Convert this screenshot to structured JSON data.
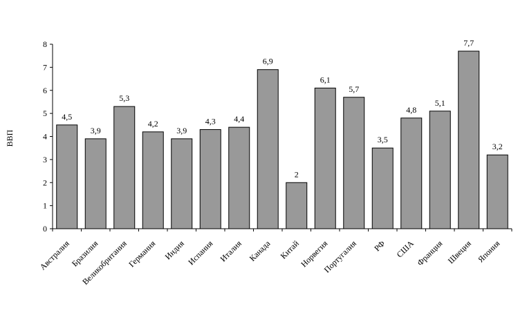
{
  "chart_data": {
    "type": "bar",
    "title": "",
    "xlabel": "",
    "ylabel": "ВВП",
    "ylim": [
      0,
      8
    ],
    "yticks": [
      0,
      1,
      2,
      3,
      4,
      5,
      6,
      7,
      8
    ],
    "grid": false,
    "legend": "none",
    "bar_color": "#999999",
    "categories": [
      "Австралия",
      "Бразилия",
      "Великобритания",
      "Германия",
      "Индия",
      "Испания",
      "Италия",
      "Канада",
      "Китай",
      "Норвегия",
      "Португалия",
      "РФ",
      "США",
      "Франция",
      "Швеция",
      "Япония"
    ],
    "values": [
      4.5,
      3.9,
      5.3,
      4.2,
      3.9,
      4.3,
      4.4,
      6.9,
      2,
      6.1,
      5.7,
      3.5,
      4.8,
      5.1,
      7.7,
      3.2
    ],
    "value_labels": [
      "4,5",
      "3,9",
      "5,3",
      "4,2",
      "3,9",
      "4,3",
      "4,4",
      "6,9",
      "2",
      "6,1",
      "5,7",
      "3,5",
      "4,8",
      "5,1",
      "7,7",
      "3,2"
    ]
  }
}
